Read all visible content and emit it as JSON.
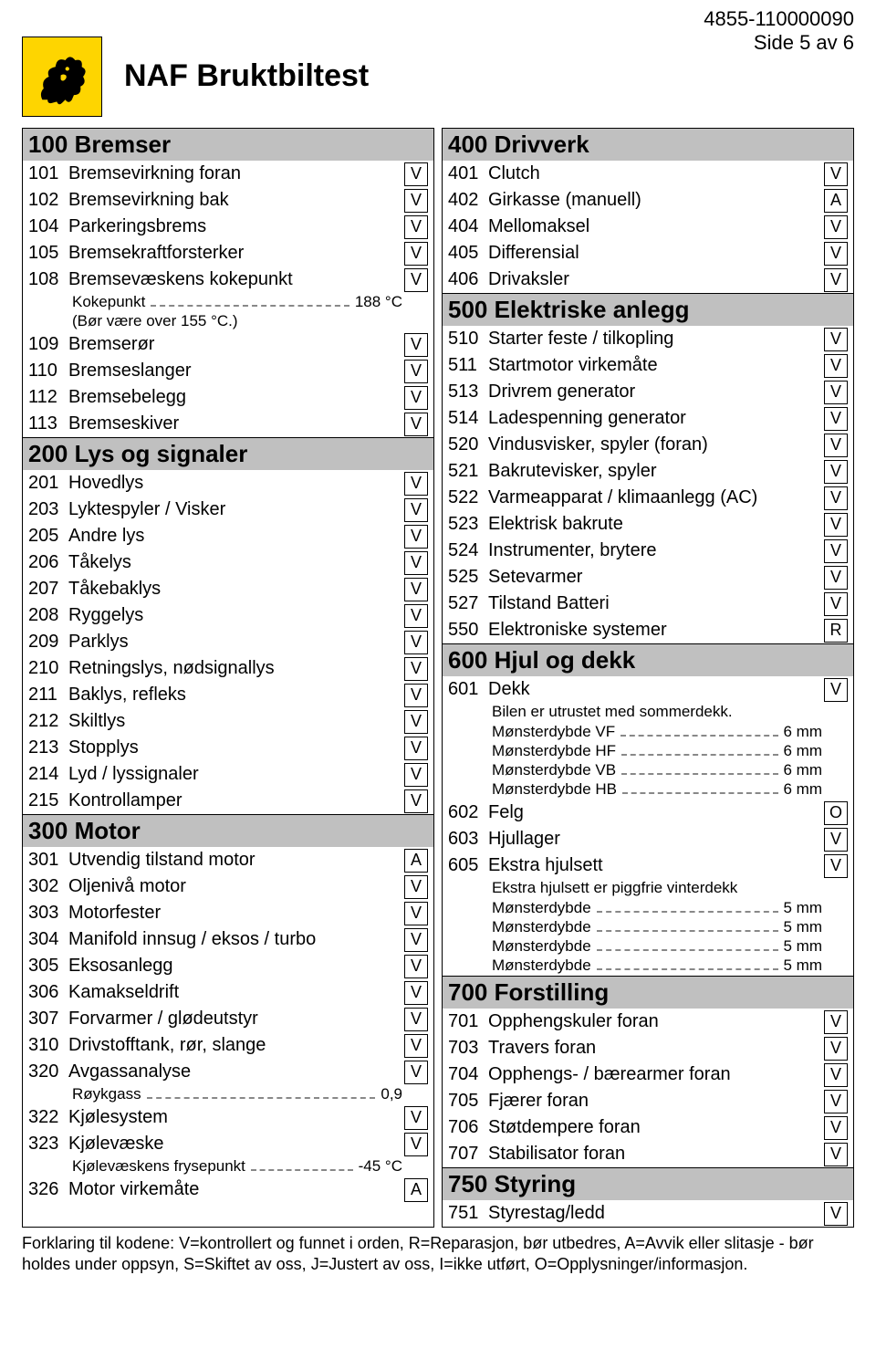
{
  "doc_id": "4855-110000090",
  "page_label": "Side 5 av 6",
  "title": "NAF Bruktbiltest",
  "colors": {
    "logo_bg": "#fed500",
    "section_bg": "#c0c0c0",
    "border": "#000000",
    "dash": "#888888"
  },
  "left": [
    {
      "type": "section",
      "num": "100",
      "title": "Bremser"
    },
    {
      "type": "row",
      "num": "101",
      "label": "Bremsevirkning foran",
      "code": "V"
    },
    {
      "type": "row",
      "num": "102",
      "label": "Bremsevirkning bak",
      "code": "V"
    },
    {
      "type": "row",
      "num": "104",
      "label": "Parkeringsbrems",
      "code": "V"
    },
    {
      "type": "row",
      "num": "105",
      "label": "Bremsekraftforsterker",
      "code": "V"
    },
    {
      "type": "row",
      "num": "108",
      "label": "Bremsevæskens kokepunkt",
      "code": "V"
    },
    {
      "type": "sub",
      "label": "Kokepunkt",
      "value": "188 °C"
    },
    {
      "type": "subnodot",
      "label": "(Bør være over 155 °C.)"
    },
    {
      "type": "row",
      "num": "109",
      "label": "Bremserør",
      "code": "V"
    },
    {
      "type": "row",
      "num": "110",
      "label": "Bremseslanger",
      "code": "V"
    },
    {
      "type": "row",
      "num": "112",
      "label": "Bremsebelegg",
      "code": "V"
    },
    {
      "type": "row",
      "num": "113",
      "label": "Bremseskiver",
      "code": "V"
    },
    {
      "type": "section",
      "num": "200",
      "title": "Lys og signaler"
    },
    {
      "type": "row",
      "num": "201",
      "label": "Hovedlys",
      "code": "V"
    },
    {
      "type": "row",
      "num": "203",
      "label": "Lyktespyler / Visker",
      "code": "V"
    },
    {
      "type": "row",
      "num": "205",
      "label": "Andre lys",
      "code": "V"
    },
    {
      "type": "row",
      "num": "206",
      "label": "Tåkelys",
      "code": "V"
    },
    {
      "type": "row",
      "num": "207",
      "label": "Tåkebaklys",
      "code": "V"
    },
    {
      "type": "row",
      "num": "208",
      "label": "Ryggelys",
      "code": "V"
    },
    {
      "type": "row",
      "num": "209",
      "label": "Parklys",
      "code": "V"
    },
    {
      "type": "row",
      "num": "210",
      "label": "Retningslys,  nødsignallys",
      "code": "V"
    },
    {
      "type": "row",
      "num": "211",
      "label": "Baklys, refleks",
      "code": "V"
    },
    {
      "type": "row",
      "num": "212",
      "label": "Skiltlys",
      "code": "V"
    },
    {
      "type": "row",
      "num": "213",
      "label": "Stopplys",
      "code": "V"
    },
    {
      "type": "row",
      "num": "214",
      "label": "Lyd / lyssignaler",
      "code": "V"
    },
    {
      "type": "row",
      "num": "215",
      "label": "Kontrollamper",
      "code": "V"
    },
    {
      "type": "section",
      "num": "300",
      "title": "Motor"
    },
    {
      "type": "row",
      "num": "301",
      "label": "Utvendig tilstand motor",
      "code": "A"
    },
    {
      "type": "row",
      "num": "302",
      "label": "Oljenivå motor",
      "code": "V"
    },
    {
      "type": "row",
      "num": "303",
      "label": "Motorfester",
      "code": "V"
    },
    {
      "type": "row",
      "num": "304",
      "label": "Manifold innsug / eksos / turbo",
      "code": "V"
    },
    {
      "type": "row",
      "num": "305",
      "label": "Eksosanlegg",
      "code": "V"
    },
    {
      "type": "row",
      "num": "306",
      "label": "Kamakseldrift",
      "code": "V"
    },
    {
      "type": "row",
      "num": "307",
      "label": "Forvarmer / glødeutstyr",
      "code": "V"
    },
    {
      "type": "row",
      "num": "310",
      "label": "Drivstofftank, rør, slange",
      "code": "V"
    },
    {
      "type": "row",
      "num": "320",
      "label": "Avgassanalyse",
      "code": "V"
    },
    {
      "type": "sub",
      "label": "Røykgass",
      "value": "0,9"
    },
    {
      "type": "row",
      "num": "322",
      "label": "Kjølesystem",
      "code": "V"
    },
    {
      "type": "row",
      "num": "323",
      "label": "Kjølevæske",
      "code": "V"
    },
    {
      "type": "sub",
      "label": "Kjølevæskens frysepunkt",
      "value": "-45 °C"
    },
    {
      "type": "row",
      "num": "326",
      "label": "Motor virkemåte",
      "code": "A"
    }
  ],
  "right": [
    {
      "type": "section",
      "num": "400",
      "title": "Drivverk"
    },
    {
      "type": "row",
      "num": "401",
      "label": "Clutch",
      "code": "V"
    },
    {
      "type": "row",
      "num": "402",
      "label": "Girkasse (manuell)",
      "code": "A"
    },
    {
      "type": "row",
      "num": "404",
      "label": "Mellomaksel",
      "code": "V"
    },
    {
      "type": "row",
      "num": "405",
      "label": "Differensial",
      "code": "V"
    },
    {
      "type": "row",
      "num": "406",
      "label": "Drivaksler",
      "code": "V"
    },
    {
      "type": "section",
      "num": "500",
      "title": "Elektriske anlegg"
    },
    {
      "type": "row",
      "num": "510",
      "label": "Starter feste / tilkopling",
      "code": "V"
    },
    {
      "type": "row",
      "num": "511",
      "label": "Startmotor virkemåte",
      "code": "V"
    },
    {
      "type": "row",
      "num": "513",
      "label": "Drivrem generator",
      "code": "V"
    },
    {
      "type": "row",
      "num": "514",
      "label": "Ladespenning generator",
      "code": "V"
    },
    {
      "type": "row",
      "num": "520",
      "label": "Vindusvisker, spyler (foran)",
      "code": "V"
    },
    {
      "type": "row",
      "num": "521",
      "label": "Bakrutevisker, spyler",
      "code": "V"
    },
    {
      "type": "row",
      "num": "522",
      "label": "Varmeapparat / klimaanlegg (AC)",
      "code": "V"
    },
    {
      "type": "row",
      "num": "523",
      "label": "Elektrisk bakrute",
      "code": "V"
    },
    {
      "type": "row",
      "num": "524",
      "label": "Instrumenter, brytere",
      "code": "V"
    },
    {
      "type": "row",
      "num": "525",
      "label": "Setevarmer",
      "code": "V"
    },
    {
      "type": "row",
      "num": "527",
      "label": "Tilstand Batteri",
      "code": "V"
    },
    {
      "type": "row",
      "num": "550",
      "label": "Elektroniske systemer",
      "code": "R"
    },
    {
      "type": "section",
      "num": "600",
      "title": "Hjul og dekk"
    },
    {
      "type": "row",
      "num": "601",
      "label": "Dekk",
      "code": "V"
    },
    {
      "type": "note",
      "text": "Bilen er utrustet med sommerdekk."
    },
    {
      "type": "sub",
      "label": "Mønsterdybde VF",
      "value": "6 mm"
    },
    {
      "type": "sub",
      "label": "Mønsterdybde HF",
      "value": "6 mm"
    },
    {
      "type": "sub",
      "label": "Mønsterdybde VB",
      "value": "6 mm"
    },
    {
      "type": "sub",
      "label": "Mønsterdybde HB",
      "value": "6 mm"
    },
    {
      "type": "row",
      "num": "602",
      "label": "Felg",
      "code": "O"
    },
    {
      "type": "row",
      "num": "603",
      "label": "Hjullager",
      "code": "V"
    },
    {
      "type": "row",
      "num": "605",
      "label": "Ekstra hjulsett",
      "code": "V"
    },
    {
      "type": "note",
      "text": "Ekstra hjulsett er piggfrie vinterdekk"
    },
    {
      "type": "sub",
      "label": "Mønsterdybde",
      "value": "5 mm"
    },
    {
      "type": "sub",
      "label": "Mønsterdybde",
      "value": "5 mm"
    },
    {
      "type": "sub",
      "label": "Mønsterdybde",
      "value": "5 mm"
    },
    {
      "type": "sub",
      "label": "Mønsterdybde",
      "value": "5 mm"
    },
    {
      "type": "section",
      "num": "700",
      "title": "Forstilling"
    },
    {
      "type": "row",
      "num": "701",
      "label": "Opphengskuler foran",
      "code": "V"
    },
    {
      "type": "row",
      "num": "703",
      "label": "Travers foran",
      "code": "V"
    },
    {
      "type": "row",
      "num": "704",
      "label": "Opphengs- / bærearmer foran",
      "code": "V"
    },
    {
      "type": "row",
      "num": "705",
      "label": "Fjærer foran",
      "code": "V"
    },
    {
      "type": "row",
      "num": "706",
      "label": "Støtdempere foran",
      "code": "V"
    },
    {
      "type": "row",
      "num": "707",
      "label": "Stabilisator foran",
      "code": "V"
    },
    {
      "type": "section",
      "num": "750",
      "title": "Styring"
    },
    {
      "type": "row",
      "num": "751",
      "label": "Styrestag/ledd",
      "code": "V"
    }
  ],
  "footer": "Forklaring til kodene: V=kontrollert og funnet i orden, R=Reparasjon, bør utbedres, A=Avvik eller slitasje - bør holdes under oppsyn, S=Skiftet av oss, J=Justert av oss, I=ikke utført, O=Opplysninger/informasjon."
}
